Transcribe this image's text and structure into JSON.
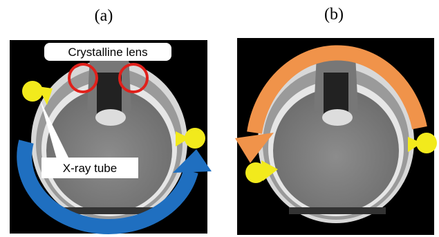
{
  "panels": [
    {
      "label": "(a)",
      "annotations": {
        "lens": "Crystalline lens",
        "tube": "X-ray tube"
      }
    },
    {
      "label": "(b)"
    }
  ]
}
